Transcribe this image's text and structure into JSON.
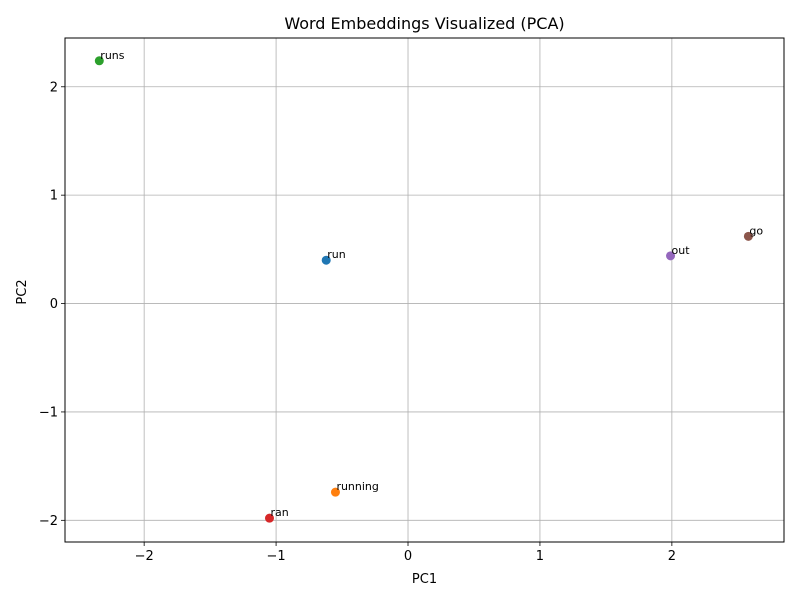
{
  "chart_data": {
    "type": "scatter",
    "title": "Word Embeddings Visualized (PCA)",
    "xlabel": "PC1",
    "ylabel": "PC2",
    "xlim": [
      -2.6,
      2.85
    ],
    "ylim": [
      -2.2,
      2.45
    ],
    "xticks": [
      -2,
      -1,
      0,
      1,
      2
    ],
    "yticks": [
      -2,
      -1,
      0,
      1,
      2
    ],
    "xtick_labels": [
      "−2",
      "−1",
      "0",
      "1",
      "2"
    ],
    "ytick_labels": [
      "−2",
      "−1",
      "0",
      "1",
      "2"
    ],
    "grid": true,
    "points": [
      {
        "label": "run",
        "x": -0.62,
        "y": 0.4,
        "color": "#1f77b4"
      },
      {
        "label": "running",
        "x": -0.55,
        "y": -1.74,
        "color": "#ff7f0e"
      },
      {
        "label": "runs",
        "x": -2.34,
        "y": 2.24,
        "color": "#2ca02c"
      },
      {
        "label": "ran",
        "x": -1.05,
        "y": -1.98,
        "color": "#d62728"
      },
      {
        "label": "out",
        "x": 1.99,
        "y": 0.44,
        "color": "#9467bd"
      },
      {
        "label": "go",
        "x": 2.58,
        "y": 0.62,
        "color": "#8c564b"
      }
    ]
  }
}
